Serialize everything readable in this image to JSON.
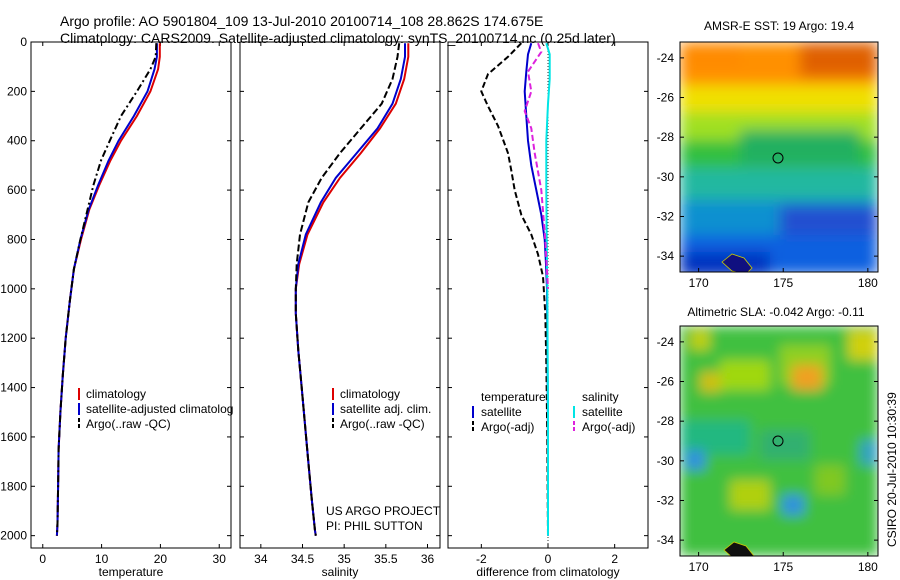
{
  "title": {
    "line1": "Argo profile: AO 5901804_109 13-Jul-2010 20100714_108 28.862S 174.675E",
    "line2": "Climatology: CARS2009. Satellite-adjusted climatology: synTS_20100714.nc (0.25d later)"
  },
  "credit": {
    "line1": "US ARGO PROJECT",
    "line2": "PI: PHIL SUTTON"
  },
  "footer_stamp": "CSIRO 20-Jul-2010 10:30:39",
  "colors": {
    "climatology": "#dd0000",
    "satellite": "#0000cc",
    "argo": "#000000",
    "sal_satellite": "#00e5e5",
    "sal_argo": "#dd22dd"
  },
  "chart_data": [
    {
      "type": "line",
      "xlabel": "temperature",
      "xlim": [
        -2,
        32
      ],
      "ylim": [
        2050,
        0
      ],
      "xticks": [
        0,
        10,
        20,
        30
      ],
      "yticks": [
        0,
        200,
        400,
        600,
        800,
        1000,
        1200,
        1400,
        1600,
        1800,
        2000
      ],
      "legend": [
        "climatology",
        "satellite-adjusted climatolog",
        "Argo(..raw -QC)"
      ],
      "series": [
        {
          "name": "climatology",
          "color": "#dd0000",
          "dash": "",
          "x": [
            19.9,
            19.9,
            19.6,
            18.3,
            16.0,
            13.3,
            11.5,
            9.6,
            7.9,
            6.5,
            5.3,
            4.6,
            3.9,
            3.4,
            3.0,
            2.7,
            2.6,
            2.5,
            2.4
          ],
          "y": [
            5,
            60,
            110,
            200,
            300,
            400,
            480,
            580,
            680,
            800,
            920,
            1050,
            1200,
            1350,
            1500,
            1650,
            1800,
            1950,
            2000
          ]
        },
        {
          "name": "satellite-adjusted climatolog",
          "color": "#0000cc",
          "dash": "",
          "x": [
            19.4,
            19.4,
            19.0,
            17.8,
            15.5,
            12.9,
            11.2,
            9.4,
            7.8,
            6.4,
            5.3,
            4.6,
            3.9,
            3.4,
            3.0,
            2.7,
            2.6,
            2.5,
            2.4
          ],
          "y": [
            5,
            60,
            110,
            200,
            300,
            400,
            480,
            580,
            680,
            800,
            920,
            1050,
            1200,
            1350,
            1500,
            1650,
            1800,
            1950,
            2000
          ]
        },
        {
          "name": "Argo(..raw -QC)",
          "color": "#000000",
          "dash": "7,3,2,3",
          "x": [
            19.3,
            19.2,
            18.3,
            16.0,
            13.3,
            11.4,
            9.9,
            8.6,
            7.6,
            6.4,
            5.3,
            4.6,
            3.9,
            3.4,
            3.0,
            2.7,
            2.6,
            2.5,
            2.4
          ],
          "y": [
            5,
            60,
            110,
            200,
            300,
            400,
            480,
            580,
            680,
            800,
            920,
            1050,
            1200,
            1350,
            1500,
            1650,
            1800,
            1950,
            2000
          ]
        }
      ]
    },
    {
      "type": "line",
      "xlabel": "salinity",
      "xlim": [
        33.75,
        36.15
      ],
      "ylim": [
        2050,
        0
      ],
      "xticks": [
        34,
        34.5,
        35,
        35.5,
        36
      ],
      "yticks": [
        0,
        200,
        400,
        600,
        800,
        1000,
        1200,
        1400,
        1600,
        1800,
        2000
      ],
      "legend": [
        "climatology",
        "satellite adj. clim.",
        "Argo(..raw -QC)"
      ],
      "series": [
        {
          "name": "climatology",
          "color": "#dd0000",
          "dash": "",
          "x": [
            35.77,
            35.77,
            35.72,
            35.62,
            35.43,
            35.2,
            34.95,
            34.75,
            34.56,
            34.46,
            34.42,
            34.42,
            34.45,
            34.49,
            34.53,
            34.57,
            34.61,
            34.65,
            34.66
          ],
          "y": [
            5,
            60,
            150,
            250,
            350,
            450,
            550,
            650,
            780,
            900,
            1000,
            1100,
            1250,
            1400,
            1550,
            1700,
            1850,
            1980,
            2000
          ]
        },
        {
          "name": "satellite adj. clim.",
          "color": "#0000cc",
          "dash": "",
          "x": [
            35.73,
            35.73,
            35.68,
            35.58,
            35.4,
            35.15,
            34.9,
            34.72,
            34.54,
            34.45,
            34.42,
            34.42,
            34.45,
            34.49,
            34.53,
            34.57,
            34.61,
            34.65,
            34.66
          ],
          "y": [
            5,
            60,
            150,
            250,
            350,
            450,
            550,
            650,
            780,
            900,
            1000,
            1100,
            1250,
            1400,
            1550,
            1700,
            1850,
            1980,
            2000
          ]
        },
        {
          "name": "Argo(..raw -QC)",
          "color": "#000000",
          "dash": "7,3",
          "x": [
            35.66,
            35.64,
            35.58,
            35.45,
            35.2,
            34.95,
            34.73,
            34.57,
            34.47,
            34.43,
            34.42,
            34.42,
            34.45,
            34.49,
            34.53,
            34.57,
            34.61,
            34.65,
            34.66
          ],
          "y": [
            5,
            60,
            150,
            250,
            350,
            450,
            550,
            650,
            780,
            900,
            1000,
            1100,
            1250,
            1400,
            1550,
            1700,
            1850,
            1980,
            2000
          ]
        }
      ]
    },
    {
      "type": "line",
      "xlabel": "difference from climatology",
      "xlim": [
        -3,
        3
      ],
      "ylim": [
        2050,
        0
      ],
      "xticks": [
        -2,
        0,
        2
      ],
      "yticks": [
        0,
        200,
        400,
        600,
        800,
        1000,
        1200,
        1400,
        1600,
        1800,
        2000
      ],
      "legend_headers": [
        "temperature",
        "salinity"
      ],
      "legend": [
        "satellite",
        "Argo(-adj)",
        "satellite",
        "Argo(-adj)"
      ],
      "series": [
        {
          "name": "satellite",
          "color": "#0000cc",
          "dash": "",
          "x": [
            -0.5,
            -0.6,
            -0.65,
            -0.7,
            -0.65,
            -0.6,
            -0.5,
            -0.35,
            -0.2,
            -0.1,
            -0.06,
            -0.03,
            -0.02,
            -0.01,
            0,
            0
          ],
          "y": [
            5,
            50,
            120,
            200,
            300,
            400,
            500,
            600,
            700,
            800,
            900,
            1000,
            1200,
            1400,
            1700,
            2000
          ]
        },
        {
          "name": "Argo(-adj)",
          "color": "#000000",
          "dash": "6,3",
          "x": [
            -0.8,
            -1.2,
            -1.8,
            -2.0,
            -1.8,
            -1.5,
            -1.2,
            -1.1,
            -1.0,
            -0.8,
            -0.5,
            -0.3,
            -0.15,
            -0.08,
            -0.05,
            -0.02,
            0
          ],
          "y": [
            5,
            60,
            130,
            200,
            260,
            340,
            450,
            520,
            600,
            700,
            780,
            860,
            950,
            1100,
            1300,
            1600,
            2000
          ]
        },
        {
          "name": "satellite",
          "color": "#00e5e5",
          "dash": "",
          "x": [
            -0.05,
            0.05,
            0.05,
            0,
            -0.05,
            -0.05,
            -0.04,
            -0.02,
            0,
            0
          ],
          "y": [
            5,
            50,
            150,
            250,
            400,
            600,
            800,
            1000,
            1500,
            2000
          ]
        },
        {
          "name": "Argo(-adj)",
          "color": "#dd22dd",
          "dash": "6,3",
          "x": [
            -0.3,
            -0.2,
            -0.6,
            -0.5,
            -0.7,
            -0.5,
            -0.4,
            -0.2,
            -0.08,
            0
          ],
          "y": [
            5,
            40,
            120,
            200,
            280,
            350,
            450,
            600,
            800,
            1000
          ]
        }
      ]
    },
    {
      "type": "heatmap",
      "title": "AMSR-E SST: 19 Argo: 19.4",
      "xlim": [
        168.9,
        180.6
      ],
      "ylim": [
        -34.8,
        -23.2
      ],
      "xticks": [
        170,
        175,
        180
      ],
      "yticks": [
        -24,
        -26,
        -28,
        -30,
        -32,
        -34
      ],
      "marker": [
        174.675,
        -28.862
      ]
    },
    {
      "type": "heatmap",
      "title": "Altimetric SLA: -0.042 Argo: -0.11",
      "xlim": [
        168.9,
        180.6
      ],
      "ylim": [
        -34.8,
        -23.2
      ],
      "xticks": [
        170,
        175,
        180
      ],
      "yticks": [
        -24,
        -26,
        -28,
        -30,
        -32,
        -34
      ],
      "marker": [
        174.675,
        -28.862
      ]
    }
  ]
}
